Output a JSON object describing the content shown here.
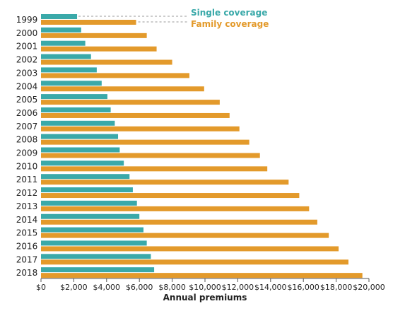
{
  "chart_data": {
    "type": "bar",
    "orientation": "horizontal",
    "title": "",
    "xlabel": "Annual premiums",
    "ylabel": "",
    "xlim": [
      0,
      20000
    ],
    "x_ticks": [
      "$0",
      "$2,000",
      "$4,000",
      "$6,000",
      "$8,000",
      "$10,000",
      "$12,000",
      "$14,000",
      "$16,000",
      "$18,000",
      "$20,000"
    ],
    "categories": [
      "1999",
      "2000",
      "2001",
      "2002",
      "2003",
      "2004",
      "2005",
      "2006",
      "2007",
      "2008",
      "2009",
      "2010",
      "2011",
      "2012",
      "2013",
      "2014",
      "2015",
      "2016",
      "2017",
      "2018"
    ],
    "series": [
      {
        "name": "Single coverage",
        "color": "#3aa9a9",
        "values": [
          2200,
          2450,
          2700,
          3050,
          3400,
          3700,
          4050,
          4250,
          4500,
          4700,
          4800,
          5050,
          5400,
          5600,
          5850,
          6000,
          6250,
          6450,
          6700,
          6900
        ]
      },
      {
        "name": "Family coverage",
        "color": "#e39a2b",
        "values": [
          5800,
          6450,
          7050,
          8000,
          9050,
          9950,
          10900,
          11500,
          12100,
          12700,
          13350,
          13800,
          15100,
          15750,
          16350,
          16850,
          17550,
          18150,
          18750,
          19600
        ]
      }
    ],
    "grid": false,
    "legend": "top-center"
  }
}
